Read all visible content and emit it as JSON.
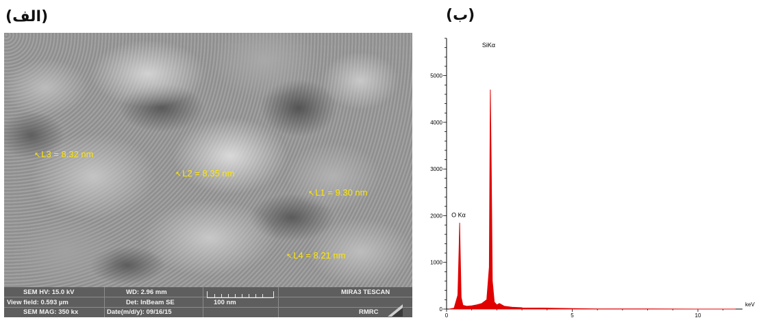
{
  "panels": {
    "a_label": "(الف)",
    "b_label": "(ب)"
  },
  "sem": {
    "measurements": [
      {
        "id": "L3",
        "text": "L3 = 8.32 nm"
      },
      {
        "id": "L2",
        "text": "L2 = 8.35 nm"
      },
      {
        "id": "L1",
        "text": "L1 = 9.30 nm"
      },
      {
        "id": "L4",
        "text": "L4 = 8.21 nm"
      }
    ],
    "info": {
      "hv": "SEM HV: 15.0 kV",
      "wd": "WD: 2.96 mm",
      "instrument": "MIRA3 TESCAN",
      "view_field": "View field: 0.593 µm",
      "detector": "Det: InBeam SE",
      "scale": "100 nm",
      "mag": "SEM MAG: 350 kx",
      "date": "Date(m/d/y): 09/16/15",
      "lab": "RMRC"
    }
  },
  "chart_data": {
    "type": "line",
    "title": "",
    "xlabel": "keV",
    "ylabel": "",
    "xlim": [
      0,
      11.5
    ],
    "ylim": [
      0,
      5800
    ],
    "yticks": [
      0,
      1000,
      2000,
      3000,
      4000,
      5000
    ],
    "xticks": [
      0,
      5,
      10
    ],
    "ytick_labels": [
      "0",
      "1000",
      "2000",
      "3000",
      "4000",
      "5000"
    ],
    "xtick_labels": [
      "0",
      "5",
      "10"
    ],
    "grid": false,
    "color": "#e00000",
    "peaks": [
      {
        "label": "O Kα",
        "x": 0.52,
        "y": 1850
      },
      {
        "label": "SiKα",
        "x": 1.74,
        "y": 4700
      }
    ],
    "series": [
      {
        "x": [
          0.1,
          0.3,
          0.45,
          0.5,
          0.52,
          0.54,
          0.58,
          0.65,
          0.8,
          1.0,
          1.2,
          1.4,
          1.6,
          1.7,
          1.74,
          1.78,
          1.82,
          1.9,
          2.0,
          2.1,
          2.3,
          2.6,
          3.0,
          4.0,
          5.0,
          6.0,
          8.0,
          10.0,
          11.5
        ],
        "y": [
          0,
          20,
          300,
          1300,
          1850,
          1300,
          250,
          80,
          60,
          70,
          90,
          120,
          200,
          900,
          4700,
          3000,
          600,
          150,
          90,
          120,
          60,
          40,
          30,
          20,
          10,
          5,
          5,
          0,
          0
        ]
      }
    ]
  }
}
